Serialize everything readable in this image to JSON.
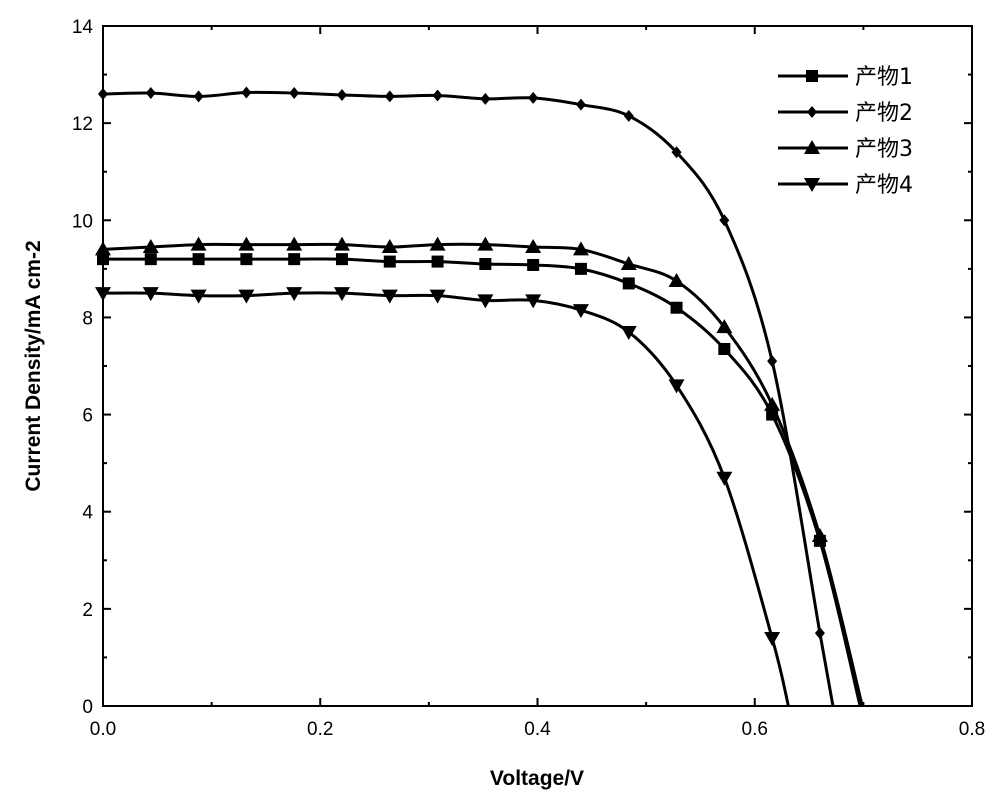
{
  "chart_data": {
    "type": "line",
    "title": "",
    "xlabel": "Voltage/V",
    "ylabel": "Current Density/mA cm-2",
    "xlim": [
      0,
      0.8
    ],
    "ylim": [
      0,
      14
    ],
    "xticks": [
      "0.0",
      "0.2",
      "0.4",
      "0.6",
      "0.8"
    ],
    "xtick_values": [
      0,
      0.2,
      0.4,
      0.6,
      0.8
    ],
    "yticks": [
      "0",
      "2",
      "4",
      "6",
      "8",
      "10",
      "12",
      "14"
    ],
    "ytick_values": [
      0,
      2,
      4,
      6,
      8,
      10,
      12,
      14
    ],
    "grid": false,
    "legend_position": "top-right",
    "series": [
      {
        "name": "产物1",
        "marker": "square",
        "x": [
          0,
          0.044,
          0.088,
          0.132,
          0.176,
          0.22,
          0.264,
          0.308,
          0.352,
          0.396,
          0.44,
          0.484,
          0.528,
          0.572,
          0.616,
          0.66
        ],
        "y": [
          9.2,
          9.2,
          9.2,
          9.2,
          9.2,
          9.2,
          9.15,
          9.15,
          9.1,
          9.08,
          9.0,
          8.7,
          8.2,
          7.35,
          6.0,
          3.4
        ],
        "voc": 0.697
      },
      {
        "name": "产物2",
        "marker": "diamond",
        "x": [
          0,
          0.044,
          0.088,
          0.132,
          0.176,
          0.22,
          0.264,
          0.308,
          0.352,
          0.396,
          0.44,
          0.484,
          0.528,
          0.572,
          0.616,
          0.66
        ],
        "y": [
          12.6,
          12.62,
          12.55,
          12.63,
          12.62,
          12.58,
          12.55,
          12.57,
          12.5,
          12.52,
          12.38,
          12.15,
          11.4,
          10.0,
          7.1,
          1.5
        ],
        "voc": 0.672
      },
      {
        "name": "产物3",
        "marker": "triangle-up",
        "x": [
          0,
          0.044,
          0.088,
          0.132,
          0.176,
          0.22,
          0.264,
          0.308,
          0.352,
          0.396,
          0.44,
          0.484,
          0.528,
          0.572,
          0.616,
          0.66
        ],
        "y": [
          9.4,
          9.45,
          9.5,
          9.5,
          9.5,
          9.5,
          9.45,
          9.5,
          9.5,
          9.45,
          9.4,
          9.1,
          8.75,
          7.8,
          6.2,
          3.5
        ],
        "voc": 0.699
      },
      {
        "name": "产物4",
        "marker": "triangle-down",
        "x": [
          0,
          0.044,
          0.088,
          0.132,
          0.176,
          0.22,
          0.264,
          0.308,
          0.352,
          0.396,
          0.44,
          0.484,
          0.528,
          0.572,
          0.616
        ],
        "y": [
          8.5,
          8.5,
          8.45,
          8.45,
          8.5,
          8.5,
          8.45,
          8.45,
          8.35,
          8.35,
          8.15,
          7.7,
          6.6,
          4.7,
          1.4
        ],
        "voc": 0.631
      }
    ]
  }
}
